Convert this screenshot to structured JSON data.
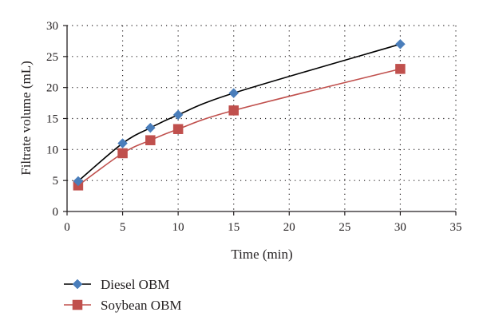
{
  "chart_data": {
    "type": "line",
    "title": "",
    "xlabel": "Time (min)",
    "ylabel": "Filtrate volume (mL)",
    "xlim": [
      0,
      35
    ],
    "ylim": [
      0,
      30
    ],
    "x_ticks": [
      0,
      5,
      10,
      15,
      20,
      25,
      30,
      35
    ],
    "y_ticks": [
      0,
      5,
      10,
      15,
      20,
      25,
      30
    ],
    "grid": "dotted",
    "legend_position": "bottom-left",
    "series": [
      {
        "name": "Diesel OBM",
        "color": "#4a7ebb",
        "line_color": "#000000",
        "marker": "diamond",
        "x": [
          1,
          5,
          7.5,
          10,
          15,
          30
        ],
        "y": [
          4.9,
          11.0,
          13.5,
          15.6,
          19.1,
          27.0
        ]
      },
      {
        "name": "Soybean OBM",
        "color": "#c0504d",
        "line_color": "#c0504d",
        "marker": "square",
        "x": [
          1,
          5,
          7.5,
          10,
          15,
          30
        ],
        "y": [
          4.2,
          9.4,
          11.5,
          13.3,
          16.3,
          23.0
        ]
      }
    ]
  }
}
